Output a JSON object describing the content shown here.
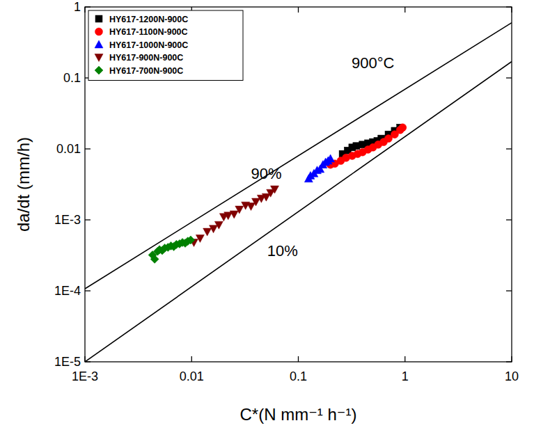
{
  "chart_data": {
    "type": "scatter",
    "x_label": "C*(N mm⁻¹ h⁻¹)",
    "y_label": "da/dt (mm/h)",
    "log": true,
    "legend": "upper left",
    "xlim": [
      0.001,
      10
    ],
    "ylim": [
      1e-05,
      1
    ],
    "xticks": [
      {
        "value": 0.001,
        "label": "1E-3"
      },
      0.01,
      0.1,
      1,
      10
    ],
    "yticks": [
      {
        "value": 1e-05,
        "label": "1E-5"
      },
      {
        "value": 0.0001,
        "label": "1E-4"
      },
      {
        "value": 0.001,
        "label": "1E-3"
      },
      0.01,
      0.1,
      1
    ],
    "series": [
      {
        "name": "HY617-1200N-900C",
        "color": "#000000",
        "marker": "square",
        "x": [
          0.26,
          0.29,
          0.32,
          0.35,
          0.4,
          0.45,
          0.5,
          0.55,
          0.6,
          0.7,
          0.8,
          0.9
        ],
        "values": [
          0.0085,
          0.0095,
          0.0105,
          0.011,
          0.0115,
          0.012,
          0.0125,
          0.013,
          0.014,
          0.016,
          0.018,
          0.02
        ]
      },
      {
        "name": "HY617-1100N-900C",
        "color": "#ff0000",
        "marker": "circle",
        "x": [
          0.2,
          0.22,
          0.25,
          0.28,
          0.32,
          0.36,
          0.4,
          0.45,
          0.5,
          0.56,
          0.63,
          0.7,
          0.8,
          0.9,
          0.95
        ],
        "values": [
          0.006,
          0.0062,
          0.0068,
          0.0075,
          0.008,
          0.0085,
          0.009,
          0.0098,
          0.0105,
          0.0115,
          0.0125,
          0.014,
          0.016,
          0.0185,
          0.02
        ]
      },
      {
        "name": "HY617-1000N-900C",
        "color": "#0000ff",
        "marker": "triangle",
        "x": [
          0.125,
          0.13,
          0.14,
          0.15,
          0.16,
          0.17,
          0.18,
          0.19,
          0.2
        ],
        "values": [
          0.0038,
          0.0042,
          0.0045,
          0.005,
          0.0052,
          0.006,
          0.0065,
          0.0068,
          0.0073
        ]
      },
      {
        "name": "HY617-900N-900C",
        "color": "#800000",
        "marker": "triangle-down",
        "x": [
          0.0105,
          0.012,
          0.014,
          0.016,
          0.018,
          0.02,
          0.022,
          0.025,
          0.028,
          0.032,
          0.036,
          0.04,
          0.045,
          0.05,
          0.055,
          0.06
        ],
        "values": [
          0.00048,
          0.00055,
          0.00068,
          0.00075,
          0.00085,
          0.0011,
          0.00115,
          0.0012,
          0.0014,
          0.0016,
          0.00155,
          0.0018,
          0.002,
          0.0021,
          0.0024,
          0.0027
        ]
      },
      {
        "name": "HY617-700N-900C",
        "color": "#008000",
        "marker": "diamond",
        "x": [
          0.0043,
          0.0045,
          0.0048,
          0.005,
          0.0053,
          0.0056,
          0.006,
          0.0064,
          0.0068,
          0.0072,
          0.0077,
          0.0082,
          0.0087,
          0.0092,
          0.0098
        ],
        "values": [
          0.00032,
          0.00028,
          0.00036,
          0.00038,
          0.00037,
          0.0004,
          0.00041,
          0.00043,
          0.00042,
          0.00045,
          0.00046,
          0.00048,
          0.00047,
          0.0005,
          0.00052
        ]
      },
      {
        "type": "line",
        "color": "#000000",
        "line_style": "solid",
        "x": [
          0.001,
          10
        ],
        "values": [
          0.000107,
          0.6
        ]
      },
      {
        "type": "line",
        "color": "#000000",
        "line_style": "solid",
        "x": [
          0.001,
          10
        ],
        "values": [
          1e-05,
          0.17
        ]
      }
    ],
    "annotations": [
      {
        "text": "900°C",
        "x": 0.316,
        "y": 0.165
      },
      {
        "text": "90%",
        "x": 0.036,
        "y": 0.0045
      },
      {
        "text": "10%",
        "x": 0.051,
        "y": 0.00037
      }
    ]
  }
}
